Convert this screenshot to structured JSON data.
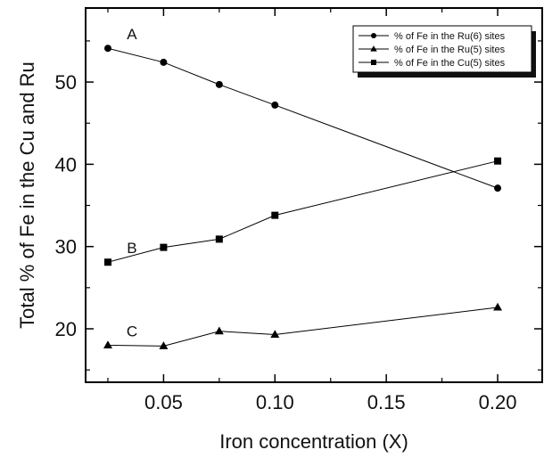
{
  "chart_data": {
    "type": "line",
    "xlabel": "Iron concentration (X)",
    "ylabel": "Total % of Fe in the Cu and Ru",
    "xlim": [
      0.015,
      0.22
    ],
    "ylim": [
      13.5,
      59
    ],
    "x_major_ticks": [
      0.05,
      0.1,
      0.15,
      0.2
    ],
    "x_tick_labels": [
      "0.05",
      "0.10",
      "0.15",
      "0.20"
    ],
    "y_major_ticks": [
      20,
      30,
      40,
      50
    ],
    "y_tick_labels": [
      "20",
      "30",
      "40",
      "50"
    ],
    "grid": false,
    "legend_position": "top-right",
    "series": [
      {
        "name": "% of Fe in the Ru(6) sites",
        "letter": "A",
        "marker": "circle",
        "color": "#000000",
        "x": [
          0.025,
          0.05,
          0.075,
          0.1,
          0.2
        ],
        "values": [
          54.1,
          52.4,
          49.7,
          47.2,
          37.1
        ]
      },
      {
        "name": "% of Fe in the Ru(5) sites",
        "letter": "C",
        "marker": "triangle",
        "color": "#000000",
        "x": [
          0.025,
          0.05,
          0.075,
          0.1,
          0.2
        ],
        "values": [
          18.0,
          17.9,
          19.7,
          19.3,
          22.6
        ]
      },
      {
        "name": "% of Fe in the Cu(5) sites",
        "letter": "B",
        "marker": "square",
        "color": "#000000",
        "x": [
          0.025,
          0.05,
          0.075,
          0.1,
          0.2
        ],
        "values": [
          28.1,
          29.9,
          30.9,
          33.8,
          40.4
        ]
      }
    ]
  }
}
